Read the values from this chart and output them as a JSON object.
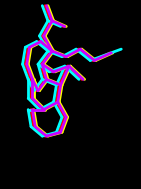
{
  "bg_color": "#000000",
  "fig_width": 1.41,
  "fig_height": 1.89,
  "dpi": 100,
  "molecules": [
    {
      "color": "#ff0000",
      "linewidth": 2.0,
      "segments": [
        [
          [
            0.32,
            0.97
          ],
          [
            0.36,
            0.89
          ]
        ],
        [
          [
            0.36,
            0.89
          ],
          [
            0.3,
            0.81
          ]
        ],
        [
          [
            0.3,
            0.81
          ],
          [
            0.36,
            0.73
          ]
        ],
        [
          [
            0.36,
            0.73
          ],
          [
            0.29,
            0.66
          ]
        ],
        [
          [
            0.29,
            0.66
          ],
          [
            0.32,
            0.58
          ]
        ],
        [
          [
            0.32,
            0.58
          ],
          [
            0.26,
            0.52
          ]
        ],
        [
          [
            0.36,
            0.89
          ],
          [
            0.45,
            0.86
          ]
        ],
        [
          [
            0.36,
            0.73
          ],
          [
            0.46,
            0.7
          ]
        ],
        [
          [
            0.46,
            0.7
          ],
          [
            0.56,
            0.74
          ]
        ],
        [
          [
            0.56,
            0.74
          ],
          [
            0.66,
            0.68
          ]
        ],
        [
          [
            0.66,
            0.68
          ],
          [
            0.78,
            0.72
          ]
        ],
        [
          [
            0.29,
            0.66
          ],
          [
            0.37,
            0.62
          ]
        ],
        [
          [
            0.37,
            0.62
          ],
          [
            0.48,
            0.65
          ]
        ],
        [
          [
            0.48,
            0.65
          ],
          [
            0.58,
            0.58
          ]
        ],
        [
          [
            0.32,
            0.58
          ],
          [
            0.42,
            0.55
          ]
        ],
        [
          [
            0.42,
            0.55
          ],
          [
            0.48,
            0.65
          ]
        ],
        [
          [
            0.42,
            0.55
          ],
          [
            0.4,
            0.46
          ]
        ],
        [
          [
            0.4,
            0.46
          ],
          [
            0.3,
            0.42
          ]
        ],
        [
          [
            0.3,
            0.42
          ],
          [
            0.22,
            0.48
          ]
        ],
        [
          [
            0.22,
            0.48
          ],
          [
            0.22,
            0.58
          ]
        ],
        [
          [
            0.22,
            0.58
          ],
          [
            0.26,
            0.52
          ]
        ],
        [
          [
            0.22,
            0.58
          ],
          [
            0.18,
            0.66
          ]
        ],
        [
          [
            0.18,
            0.66
          ],
          [
            0.2,
            0.75
          ]
        ],
        [
          [
            0.2,
            0.75
          ],
          [
            0.28,
            0.78
          ]
        ],
        [
          [
            0.28,
            0.78
          ],
          [
            0.36,
            0.73
          ]
        ],
        [
          [
            0.4,
            0.46
          ],
          [
            0.46,
            0.38
          ]
        ],
        [
          [
            0.46,
            0.38
          ],
          [
            0.42,
            0.3
          ]
        ],
        [
          [
            0.42,
            0.3
          ],
          [
            0.32,
            0.28
          ]
        ],
        [
          [
            0.32,
            0.28
          ],
          [
            0.24,
            0.33
          ]
        ],
        [
          [
            0.24,
            0.33
          ],
          [
            0.22,
            0.42
          ]
        ],
        [
          [
            0.22,
            0.42
          ],
          [
            0.3,
            0.42
          ]
        ]
      ]
    },
    {
      "color": "#ffff00",
      "linewidth": 2.0,
      "segments": [
        [
          [
            0.34,
            0.97
          ],
          [
            0.38,
            0.89
          ]
        ],
        [
          [
            0.38,
            0.89
          ],
          [
            0.32,
            0.81
          ]
        ],
        [
          [
            0.32,
            0.81
          ],
          [
            0.38,
            0.73
          ]
        ],
        [
          [
            0.38,
            0.73
          ],
          [
            0.31,
            0.66
          ]
        ],
        [
          [
            0.31,
            0.66
          ],
          [
            0.34,
            0.58
          ]
        ],
        [
          [
            0.34,
            0.58
          ],
          [
            0.28,
            0.52
          ]
        ],
        [
          [
            0.38,
            0.89
          ],
          [
            0.47,
            0.86
          ]
        ],
        [
          [
            0.38,
            0.73
          ],
          [
            0.48,
            0.7
          ]
        ],
        [
          [
            0.48,
            0.7
          ],
          [
            0.58,
            0.74
          ]
        ],
        [
          [
            0.58,
            0.74
          ],
          [
            0.68,
            0.68
          ]
        ],
        [
          [
            0.68,
            0.68
          ],
          [
            0.8,
            0.72
          ]
        ],
        [
          [
            0.31,
            0.66
          ],
          [
            0.39,
            0.62
          ]
        ],
        [
          [
            0.39,
            0.62
          ],
          [
            0.5,
            0.65
          ]
        ],
        [
          [
            0.5,
            0.65
          ],
          [
            0.6,
            0.58
          ]
        ],
        [
          [
            0.34,
            0.58
          ],
          [
            0.44,
            0.55
          ]
        ],
        [
          [
            0.44,
            0.55
          ],
          [
            0.5,
            0.65
          ]
        ],
        [
          [
            0.44,
            0.55
          ],
          [
            0.42,
            0.46
          ]
        ],
        [
          [
            0.42,
            0.46
          ],
          [
            0.32,
            0.42
          ]
        ],
        [
          [
            0.32,
            0.42
          ],
          [
            0.24,
            0.48
          ]
        ],
        [
          [
            0.24,
            0.48
          ],
          [
            0.24,
            0.58
          ]
        ],
        [
          [
            0.24,
            0.58
          ],
          [
            0.28,
            0.52
          ]
        ],
        [
          [
            0.24,
            0.58
          ],
          [
            0.2,
            0.66
          ]
        ],
        [
          [
            0.2,
            0.66
          ],
          [
            0.22,
            0.75
          ]
        ],
        [
          [
            0.22,
            0.75
          ],
          [
            0.3,
            0.78
          ]
        ],
        [
          [
            0.3,
            0.78
          ],
          [
            0.38,
            0.73
          ]
        ],
        [
          [
            0.42,
            0.46
          ],
          [
            0.48,
            0.38
          ]
        ],
        [
          [
            0.48,
            0.38
          ],
          [
            0.44,
            0.3
          ]
        ],
        [
          [
            0.44,
            0.3
          ],
          [
            0.34,
            0.28
          ]
        ],
        [
          [
            0.34,
            0.28
          ],
          [
            0.26,
            0.33
          ]
        ],
        [
          [
            0.26,
            0.33
          ],
          [
            0.24,
            0.42
          ]
        ],
        [
          [
            0.24,
            0.42
          ],
          [
            0.32,
            0.42
          ]
        ]
      ]
    },
    {
      "color": "#00ffff",
      "linewidth": 2.0,
      "segments": [
        [
          [
            0.3,
            0.97
          ],
          [
            0.34,
            0.89
          ]
        ],
        [
          [
            0.34,
            0.89
          ],
          [
            0.28,
            0.81
          ]
        ],
        [
          [
            0.28,
            0.81
          ],
          [
            0.34,
            0.73
          ]
        ],
        [
          [
            0.34,
            0.73
          ],
          [
            0.27,
            0.66
          ]
        ],
        [
          [
            0.27,
            0.66
          ],
          [
            0.3,
            0.58
          ]
        ],
        [
          [
            0.3,
            0.58
          ],
          [
            0.24,
            0.52
          ]
        ],
        [
          [
            0.34,
            0.89
          ],
          [
            0.43,
            0.86
          ]
        ],
        [
          [
            0.34,
            0.73
          ],
          [
            0.44,
            0.7
          ]
        ],
        [
          [
            0.44,
            0.7
          ],
          [
            0.54,
            0.74
          ]
        ],
        [
          [
            0.54,
            0.74
          ],
          [
            0.64,
            0.68
          ]
        ],
        [
          [
            0.64,
            0.68
          ],
          [
            0.86,
            0.74
          ]
        ],
        [
          [
            0.27,
            0.66
          ],
          [
            0.35,
            0.62
          ]
        ],
        [
          [
            0.35,
            0.62
          ],
          [
            0.46,
            0.65
          ]
        ],
        [
          [
            0.46,
            0.65
          ],
          [
            0.56,
            0.58
          ]
        ],
        [
          [
            0.3,
            0.58
          ],
          [
            0.4,
            0.55
          ]
        ],
        [
          [
            0.4,
            0.55
          ],
          [
            0.46,
            0.65
          ]
        ],
        [
          [
            0.4,
            0.55
          ],
          [
            0.38,
            0.46
          ]
        ],
        [
          [
            0.38,
            0.46
          ],
          [
            0.28,
            0.42
          ]
        ],
        [
          [
            0.28,
            0.42
          ],
          [
            0.2,
            0.48
          ]
        ],
        [
          [
            0.2,
            0.48
          ],
          [
            0.2,
            0.58
          ]
        ],
        [
          [
            0.2,
            0.58
          ],
          [
            0.24,
            0.52
          ]
        ],
        [
          [
            0.2,
            0.58
          ],
          [
            0.16,
            0.66
          ]
        ],
        [
          [
            0.16,
            0.66
          ],
          [
            0.18,
            0.75
          ]
        ],
        [
          [
            0.18,
            0.75
          ],
          [
            0.26,
            0.78
          ]
        ],
        [
          [
            0.26,
            0.78
          ],
          [
            0.34,
            0.73
          ]
        ],
        [
          [
            0.38,
            0.46
          ],
          [
            0.44,
            0.38
          ]
        ],
        [
          [
            0.44,
            0.38
          ],
          [
            0.4,
            0.3
          ]
        ],
        [
          [
            0.4,
            0.3
          ],
          [
            0.3,
            0.28
          ]
        ],
        [
          [
            0.3,
            0.28
          ],
          [
            0.22,
            0.33
          ]
        ],
        [
          [
            0.22,
            0.33
          ],
          [
            0.2,
            0.42
          ]
        ],
        [
          [
            0.2,
            0.42
          ],
          [
            0.28,
            0.42
          ]
        ]
      ]
    },
    {
      "color": "#cc00ff",
      "linewidth": 2.0,
      "segments": [
        [
          [
            0.33,
            0.97
          ],
          [
            0.37,
            0.89
          ]
        ],
        [
          [
            0.37,
            0.89
          ],
          [
            0.31,
            0.81
          ]
        ],
        [
          [
            0.31,
            0.81
          ],
          [
            0.37,
            0.73
          ]
        ],
        [
          [
            0.37,
            0.73
          ],
          [
            0.3,
            0.66
          ]
        ],
        [
          [
            0.3,
            0.66
          ],
          [
            0.33,
            0.58
          ]
        ],
        [
          [
            0.33,
            0.58
          ],
          [
            0.27,
            0.52
          ]
        ],
        [
          [
            0.37,
            0.89
          ],
          [
            0.46,
            0.86
          ]
        ],
        [
          [
            0.37,
            0.73
          ],
          [
            0.47,
            0.7
          ]
        ],
        [
          [
            0.47,
            0.7
          ],
          [
            0.57,
            0.74
          ]
        ],
        [
          [
            0.57,
            0.74
          ],
          [
            0.67,
            0.68
          ]
        ],
        [
          [
            0.67,
            0.68
          ],
          [
            0.79,
            0.72
          ]
        ],
        [
          [
            0.3,
            0.66
          ],
          [
            0.38,
            0.62
          ]
        ],
        [
          [
            0.38,
            0.62
          ],
          [
            0.49,
            0.65
          ]
        ],
        [
          [
            0.49,
            0.65
          ],
          [
            0.59,
            0.58
          ]
        ],
        [
          [
            0.33,
            0.58
          ],
          [
            0.43,
            0.55
          ]
        ],
        [
          [
            0.43,
            0.55
          ],
          [
            0.49,
            0.65
          ]
        ],
        [
          [
            0.43,
            0.55
          ],
          [
            0.41,
            0.46
          ]
        ],
        [
          [
            0.41,
            0.46
          ],
          [
            0.31,
            0.42
          ]
        ],
        [
          [
            0.31,
            0.42
          ],
          [
            0.23,
            0.48
          ]
        ],
        [
          [
            0.23,
            0.48
          ],
          [
            0.23,
            0.58
          ]
        ],
        [
          [
            0.23,
            0.58
          ],
          [
            0.27,
            0.52
          ]
        ],
        [
          [
            0.23,
            0.58
          ],
          [
            0.19,
            0.66
          ]
        ],
        [
          [
            0.19,
            0.66
          ],
          [
            0.21,
            0.75
          ]
        ],
        [
          [
            0.21,
            0.75
          ],
          [
            0.29,
            0.78
          ]
        ],
        [
          [
            0.29,
            0.78
          ],
          [
            0.37,
            0.73
          ]
        ],
        [
          [
            0.41,
            0.46
          ],
          [
            0.47,
            0.38
          ]
        ],
        [
          [
            0.47,
            0.38
          ],
          [
            0.43,
            0.3
          ]
        ],
        [
          [
            0.43,
            0.3
          ],
          [
            0.33,
            0.28
          ]
        ],
        [
          [
            0.33,
            0.28
          ],
          [
            0.25,
            0.33
          ]
        ],
        [
          [
            0.25,
            0.33
          ],
          [
            0.23,
            0.42
          ]
        ],
        [
          [
            0.23,
            0.42
          ],
          [
            0.31,
            0.42
          ]
        ]
      ]
    }
  ]
}
